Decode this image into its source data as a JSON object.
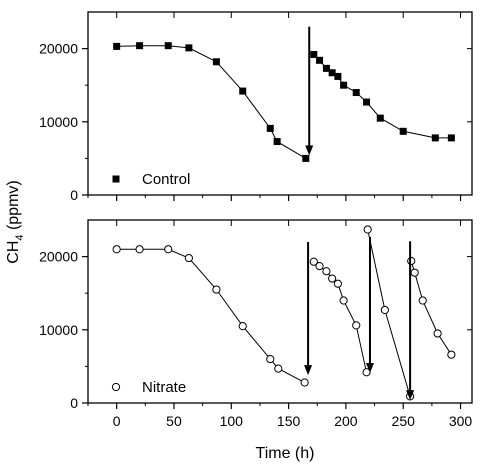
{
  "chart_data": {
    "type": "scatter",
    "ylabel_main": "CH",
    "ylabel_sub": "4",
    "ylabel_tail": " (ppmv)",
    "xlabel": "Time (h)",
    "xlim": [
      -25,
      310
    ],
    "xticks": [
      "0",
      "50",
      "100",
      "150",
      "200",
      "250",
      "300"
    ],
    "xtick_values": [
      0,
      50,
      100,
      150,
      200,
      250,
      300
    ],
    "panels": [
      {
        "id": "control",
        "legend": "Control",
        "marker": "filled-square",
        "ylim": [
          0,
          25000
        ],
        "yticks": [
          "0",
          "10000",
          "20000"
        ],
        "ytick_values": [
          0,
          10000,
          20000
        ],
        "series": [
          {
            "x": [
              0,
              20,
              45,
              63,
              87,
              110,
              134,
              140,
              165
            ],
            "y": [
              20300,
              20400,
              20400,
              20100,
              18200,
              14200,
              9100,
              7300,
              5000
            ]
          },
          {
            "x": [
              172,
              177,
              183,
              188,
              193,
              198,
              209,
              218,
              230,
              250,
              278,
              292
            ],
            "y": [
              19200,
              18400,
              17300,
              16700,
              16200,
              15000,
              14000,
              12700,
              10500,
              8700,
              7800,
              7800
            ]
          }
        ],
        "arrows": [
          {
            "x": 168,
            "from": 23000,
            "to": 5400
          }
        ]
      },
      {
        "id": "nitrate",
        "legend": "Nitrate",
        "marker": "open-circle",
        "ylim": [
          0,
          25000
        ],
        "yticks": [
          "0",
          "10000",
          "20000"
        ],
        "ytick_values": [
          0,
          10000,
          20000
        ],
        "series": [
          {
            "x": [
              0,
              20,
              45,
              63,
              87,
              110,
              134,
              141,
              164
            ],
            "y": [
              21000,
              21000,
              21000,
              19800,
              15500,
              10500,
              6000,
              4700,
              2800
            ]
          },
          {
            "x": [
              172,
              177,
              183,
              188,
              193,
              198,
              209,
              218
            ],
            "y": [
              19300,
              18700,
              18000,
              17000,
              16300,
              14000,
              10600,
              4200
            ]
          },
          {
            "x": [
              219,
              234,
              256
            ],
            "y": [
              23700,
              12700,
              900
            ]
          },
          {
            "x": [
              257,
              260,
              267,
              280,
              292
            ],
            "y": [
              19400,
              17800,
              14000,
              9500,
              6600
            ]
          }
        ],
        "arrows": [
          {
            "x": 167,
            "from": 22000,
            "to": 3800
          },
          {
            "x": 221,
            "from": 22700,
            "to": 4100
          },
          {
            "x": 256,
            "from": 22100,
            "to": 400
          }
        ]
      }
    ]
  }
}
